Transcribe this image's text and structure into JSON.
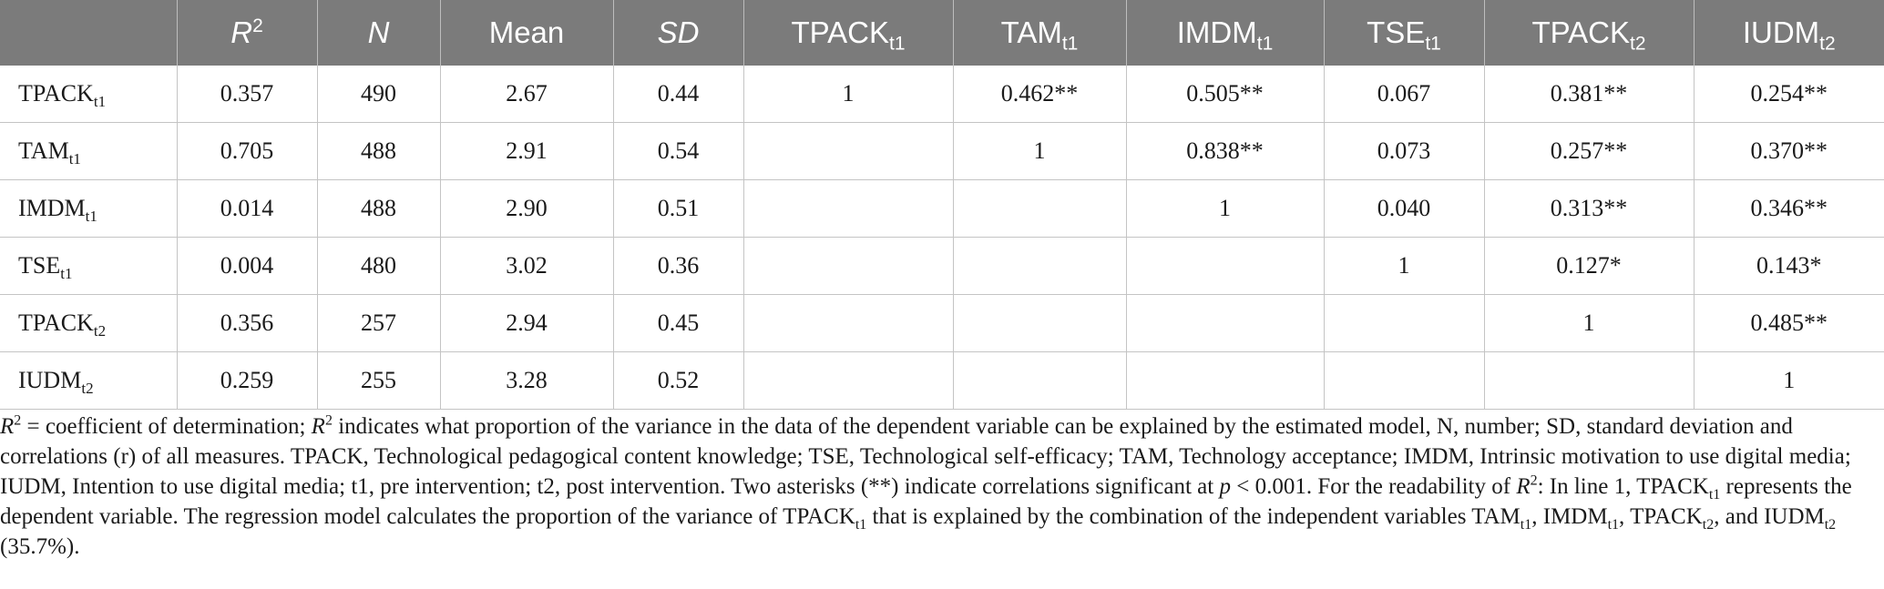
{
  "table": {
    "columns": [
      {
        "main": "",
        "sub": "",
        "sup": "",
        "italic": false
      },
      {
        "main": "R",
        "sub": "",
        "sup": "2",
        "italic": true
      },
      {
        "main": "N",
        "sub": "",
        "sup": "",
        "italic": true
      },
      {
        "main": "Mean",
        "sub": "",
        "sup": "",
        "italic": false
      },
      {
        "main": "SD",
        "sub": "",
        "sup": "",
        "italic": true
      },
      {
        "main": "TPACK",
        "sub": "t1",
        "sup": "",
        "italic": false
      },
      {
        "main": "TAM",
        "sub": "t1",
        "sup": "",
        "italic": false
      },
      {
        "main": "IMDM",
        "sub": "t1",
        "sup": "",
        "italic": false
      },
      {
        "main": "TSE",
        "sub": "t1",
        "sup": "",
        "italic": false
      },
      {
        "main": "TPACK",
        "sub": "t2",
        "sup": "",
        "italic": false
      },
      {
        "main": "IUDM",
        "sub": "t2",
        "sup": "",
        "italic": false
      }
    ],
    "rows": [
      {
        "name": "TPACK",
        "sub": "t1",
        "r2": "0.357",
        "n": "490",
        "mean": "2.67",
        "sd": "0.44",
        "corr": [
          "1",
          "0.462**",
          "0.505**",
          "0.067",
          "0.381**",
          "0.254**"
        ]
      },
      {
        "name": "TAM",
        "sub": "t1",
        "r2": "0.705",
        "n": "488",
        "mean": "2.91",
        "sd": "0.54",
        "corr": [
          "",
          "1",
          "0.838**",
          "0.073",
          "0.257**",
          "0.370**"
        ]
      },
      {
        "name": "IMDM",
        "sub": "t1",
        "r2": "0.014",
        "n": "488",
        "mean": "2.90",
        "sd": "0.51",
        "corr": [
          "",
          "",
          "1",
          "0.040",
          "0.313**",
          "0.346**"
        ]
      },
      {
        "name": "TSE",
        "sub": "t1",
        "r2": "0.004",
        "n": "480",
        "mean": "3.02",
        "sd": "0.36",
        "corr": [
          "",
          "",
          "",
          "1",
          "0.127*",
          "0.143*"
        ]
      },
      {
        "name": "TPACK",
        "sub": "t2",
        "r2": "0.356",
        "n": "257",
        "mean": "2.94",
        "sd": "0.45",
        "corr": [
          "",
          "",
          "",
          "",
          "1",
          "0.485**"
        ]
      },
      {
        "name": "IUDM",
        "sub": "t2",
        "r2": "0.259",
        "n": "255",
        "mean": "3.28",
        "sd": "0.52",
        "corr": [
          "",
          "",
          "",
          "",
          "",
          "1"
        ]
      }
    ]
  },
  "footnote": {
    "p1_r": "R",
    "p1_sup": "2",
    "p1_text": " = coefficient of determination; ",
    "p2_r": "R",
    "p2_sup": "2",
    "p2_text": " indicates what proportion of the variance in the data of the dependent variable can be explained by the estimated model, N, number; SD, standard deviation and correlations (r) of all measures. TPACK, Technological pedagogical content knowledge; TSE, Technological self-efficacy; TAM, Technology acceptance; IMDM, Intrinsic motivation to use digital media; IUDM, Intention to use digital media; t1, pre intervention; t2, post intervention. Two asterisks (**) indicate correlations significant at ",
    "p_italic": "p",
    "p_threshold": " < 0.001. For the readability of ",
    "p3_r": "R",
    "p3_sup": "2",
    "p3_text": ": In line 1, TPACK",
    "p3_sub": "t1",
    "p4_text": " represents the dependent variable. The regression model calculates the proportion of the variance of TPACK",
    "p4_sub": "t1",
    "p5_text": " that is explained by the combination of the independent variables TAM",
    "p5_sub": "t1",
    "p6_text": ", IMDM",
    "p6_sub": "t1",
    "p7_text": ", TPACK",
    "p7_sub": "t2",
    "p8_text": ", and IUDM",
    "p8_sub": "t2",
    "p9_text": " (35.7%)."
  }
}
